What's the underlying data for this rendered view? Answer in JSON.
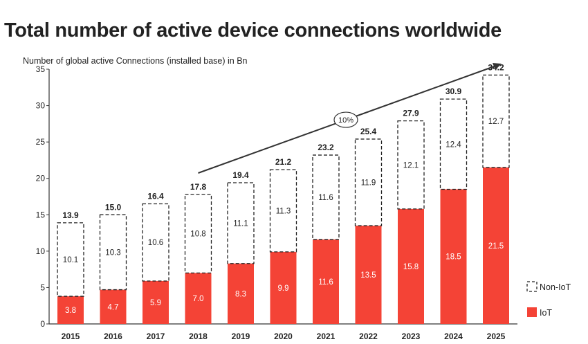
{
  "chart_data": {
    "type": "bar",
    "stacked": true,
    "title": "Total number of active device connections worldwide",
    "ylabel": "Number of global active Connections (installed base) in Bn",
    "categories": [
      "2015",
      "2016",
      "2017",
      "2018",
      "2019",
      "2020",
      "2021",
      "2022",
      "2023",
      "2024",
      "2025"
    ],
    "series": [
      {
        "name": "IoT",
        "values": [
          3.8,
          4.7,
          5.9,
          7.0,
          8.3,
          9.9,
          11.6,
          13.5,
          15.8,
          18.5,
          21.5
        ],
        "color": "#f44336",
        "style": "solid"
      },
      {
        "name": "Non-IoT",
        "values": [
          10.1,
          10.3,
          10.6,
          10.8,
          11.1,
          11.3,
          11.6,
          11.9,
          12.1,
          12.4,
          12.7
        ],
        "color": "#222222",
        "style": "dashed-outline"
      }
    ],
    "totals": [
      "13.9",
      "15.0",
      "16.4",
      "17.8",
      "19.4",
      "21.2",
      "23.2",
      "25.4",
      "27.9",
      "30.9",
      "34.2"
    ],
    "iot_labels": [
      "3.8",
      "4.7",
      "5.9",
      "7.0",
      "8.3",
      "9.9",
      "11.6",
      "13.5",
      "15.8",
      "18.5",
      "21.5"
    ],
    "noniot_labels": [
      "10.1",
      "10.3",
      "10.6",
      "10.8",
      "11.1",
      "11.3",
      "11.6",
      "11.9",
      "12.1",
      "12.4",
      "12.7"
    ],
    "yticks": [
      "0",
      "5",
      "10",
      "15",
      "20",
      "25",
      "30",
      "35"
    ],
    "ylim": [
      0,
      35
    ],
    "grid": false,
    "legend": "bottom-right",
    "annotation": {
      "label": "10%",
      "from": "2018",
      "to": "2025"
    }
  }
}
